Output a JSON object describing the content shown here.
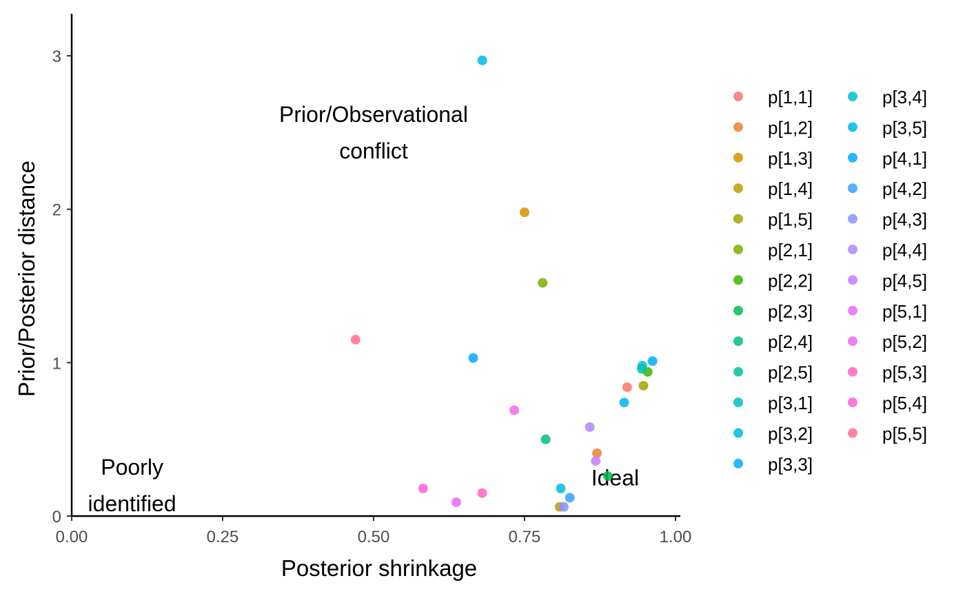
{
  "chart_data": {
    "type": "scatter",
    "title": "",
    "xlabel": "Posterior shrinkage",
    "ylabel": "Prior/Posterior distance",
    "xlim": [
      0,
      1.0
    ],
    "ylim": [
      0,
      3.0
    ],
    "x_ticks": [
      0,
      0.25,
      0.5,
      0.75,
      1.0
    ],
    "x_tick_labels": [
      "0.00",
      "0.25",
      "0.50",
      "0.75",
      "1.00"
    ],
    "y_ticks": [
      0,
      1,
      2,
      3
    ],
    "y_tick_labels": [
      "0",
      "1",
      "2",
      "3"
    ],
    "grid": false,
    "legend_position": "right",
    "annotations": [
      {
        "lines": [
          "Prior/Observational",
          "conflict"
        ],
        "x": 0.5,
        "y": 2.5
      },
      {
        "lines": [
          "Poorly",
          "identified"
        ],
        "x": 0.1,
        "y": 0.2
      },
      {
        "lines": [
          "Ideal"
        ],
        "x": 0.9,
        "y": 0.25
      }
    ],
    "series": [
      {
        "name": "p[1,1]",
        "color": "#F8766D",
        "x": 0.92,
        "y": 0.84
      },
      {
        "name": "p[1,2]",
        "color": "#EA8331",
        "x": 0.87,
        "y": 0.41
      },
      {
        "name": "p[1,3]",
        "color": "#D89000",
        "x": 0.75,
        "y": 1.98
      },
      {
        "name": "p[1,4]",
        "color": "#C09B00",
        "x": 0.808,
        "y": 0.06
      },
      {
        "name": "p[1,5]",
        "color": "#A3A500",
        "x": 0.947,
        "y": 0.85
      },
      {
        "name": "p[2,1]",
        "color": "#7CAE00",
        "x": 0.78,
        "y": 1.52
      },
      {
        "name": "p[2,2]",
        "color": "#39B600",
        "x": 0.954,
        "y": 0.94
      },
      {
        "name": "p[2,3]",
        "color": "#00BB4E",
        "x": 0.888,
        "y": 0.26
      },
      {
        "name": "p[2,4]",
        "color": "#00BF7D",
        "x": 0.785,
        "y": 0.5
      },
      {
        "name": "p[2,5]",
        "color": "#00C19F",
        "x": 0.944,
        "y": 0.96
      },
      {
        "name": "p[3,1]",
        "color": "#00BFC4",
        "x": 0.945,
        "y": 0.98
      },
      {
        "name": "p[3,2]",
        "color": "#00B9E3",
        "x": 0.68,
        "y": 2.97
      },
      {
        "name": "p[3,3]",
        "color": "#00ADFA",
        "x": 0.962,
        "y": 1.01
      },
      {
        "name": "p[3,4]",
        "color": "#00BBDA",
        "x": 0.81,
        "y": 0.18
      },
      {
        "name": "p[3,5]",
        "color": "#00B4EF",
        "x": 0.915,
        "y": 0.74
      },
      {
        "name": "p[4,1]",
        "color": "#00A9FF",
        "x": 0.665,
        "y": 1.03
      },
      {
        "name": "p[4,2]",
        "color": "#35A2FF",
        "x": 0.825,
        "y": 0.12
      },
      {
        "name": "p[4,3]",
        "color": "#8494FF",
        "x": 0.815,
        "y": 0.06
      },
      {
        "name": "p[4,4]",
        "color": "#AE87FF",
        "x": 0.858,
        "y": 0.58
      },
      {
        "name": "p[4,5]",
        "color": "#C77CFF",
        "x": 0.868,
        "y": 0.36
      },
      {
        "name": "p[5,1]",
        "color": "#E76BF3",
        "x": 0.637,
        "y": 0.09
      },
      {
        "name": "p[5,2]",
        "color": "#ED68ED",
        "x": 0.733,
        "y": 0.69
      },
      {
        "name": "p[5,3]",
        "color": "#FF61C3",
        "x": 0.68,
        "y": 0.15
      },
      {
        "name": "p[5,4]",
        "color": "#FB61D7",
        "x": 0.582,
        "y": 0.18
      },
      {
        "name": "p[5,5]",
        "color": "#FF6C91",
        "x": 0.47,
        "y": 1.15
      }
    ]
  }
}
